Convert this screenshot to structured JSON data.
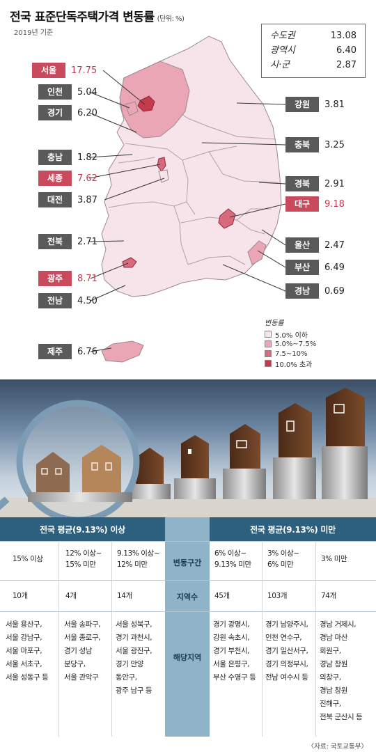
{
  "header": {
    "title": "전국 표준단독주택가격 변동률",
    "unit": "(단위: %)",
    "subtitle": "2019년 기준"
  },
  "summary": [
    {
      "name": "수도권",
      "value": "13.08"
    },
    {
      "name": "광역시",
      "value": "6.40"
    },
    {
      "name": "시·군",
      "value": "2.87"
    }
  ],
  "regions": {
    "seoul": {
      "name": "서울",
      "value": "17.75"
    },
    "incheon": {
      "name": "인천",
      "value": "5.04"
    },
    "gyeonggi": {
      "name": "경기",
      "value": "6.20"
    },
    "chungnam": {
      "name": "충남",
      "value": "1.82"
    },
    "sejong": {
      "name": "세종",
      "value": "7.62"
    },
    "daejeon": {
      "name": "대전",
      "value": "3.87"
    },
    "jeonbuk": {
      "name": "전북",
      "value": "2.71"
    },
    "gwangju": {
      "name": "광주",
      "value": "8.71"
    },
    "jeonnam": {
      "name": "전남",
      "value": "4.50"
    },
    "jeju": {
      "name": "제주",
      "value": "6.76"
    },
    "gangwon": {
      "name": "강원",
      "value": "3.81"
    },
    "chungbuk": {
      "name": "충북",
      "value": "3.25"
    },
    "gyeongbuk": {
      "name": "경북",
      "value": "2.91"
    },
    "daegu": {
      "name": "대구",
      "value": "9.18"
    },
    "ulsan": {
      "name": "울산",
      "value": "2.47"
    },
    "busan": {
      "name": "부산",
      "value": "6.49"
    },
    "gyeongnam": {
      "name": "경남",
      "value": "0.69"
    }
  },
  "legend": {
    "title": "변동률",
    "items": [
      {
        "label": "5.0% 이하",
        "color": "#f7e6ea"
      },
      {
        "label": "5.0%~7.5%",
        "color": "#eaa6b4"
      },
      {
        "label": "7.5~10%",
        "color": "#d96a7e"
      },
      {
        "label": "10.0% 초과",
        "color": "#c63a4e"
      }
    ]
  },
  "colors": {
    "land": "#f6e4ea",
    "border": "#9a8a90",
    "accent": "#c63a4e",
    "table_header": "#2d5f7e",
    "table_mid": "#8fb3c9"
  },
  "table": {
    "left_header": "전국 평균(9.13%) 이상",
    "right_header": "전국 평균(9.13%) 미만",
    "row_labels": [
      "변동구간",
      "지역수",
      "해당지역"
    ],
    "ranges": [
      "15%  이상",
      "12% 이상~\n15% 미만",
      "9.13% 이상~\n12% 미만",
      "6% 이상~\n9.13% 미만",
      "3% 이상~\n6% 미만",
      "3% 미만"
    ],
    "counts": [
      "10개",
      "4개",
      "14개",
      "45개",
      "103개",
      "74개"
    ],
    "regions": [
      "서울 용산구,\n서울 강남구,\n서울 마포구,\n서울 서초구,\n서울 성동구 등",
      "서울 송파구,\n서울 종로구,\n경기 성남\n분당구,\n서울 관악구",
      "서울 성북구,\n경기 과천시,\n서울 광진구,\n경기 안양\n동안구,\n광주 남구 등",
      "경기 광명시,\n강원 속초시,\n경기 부천시,\n서울 은평구,\n부산 수영구 등",
      "경기 남양주시,\n인천 연수구,\n경기 일산서구,\n경기 의정부시,\n전남 여수시 등",
      "경남 거제시,\n경남 마산\n회원구,\n경남 창원\n의창구,\n경남 창원\n진해구,\n전북 군산시 등"
    ]
  },
  "source": "〈자료: 국토교통부〉"
}
